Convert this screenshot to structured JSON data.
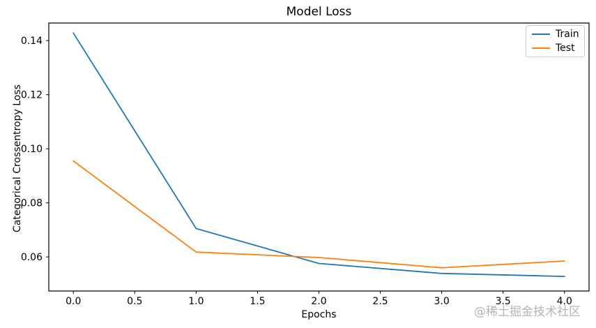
{
  "figure": {
    "title": "Model Loss",
    "xlabel": "Epochs",
    "ylabel": "Categorical Crossentropy Loss"
  },
  "legend": {
    "items": [
      {
        "label": "Train",
        "color": "#1f77b4"
      },
      {
        "label": "Test",
        "color": "#ff7f0e"
      }
    ]
  },
  "watermark": "@稀土掘金技术社区",
  "colors": {
    "train_line": "#1f77b4",
    "test_line": "#ff7f0e",
    "axis": "#000000",
    "legend_border": "#cccccc",
    "watermark_text": "#9a9a9a"
  },
  "chart_data": {
    "type": "line",
    "title": "Model Loss",
    "xlabel": "Epochs",
    "ylabel": "Categorical Crossentropy Loss",
    "x": [
      0,
      1,
      2,
      3,
      4
    ],
    "series": [
      {
        "name": "Train",
        "color": "#1f77b4",
        "values": [
          0.1428,
          0.0705,
          0.0576,
          0.0539,
          0.0528
        ]
      },
      {
        "name": "Test",
        "color": "#ff7f0e",
        "values": [
          0.0955,
          0.0618,
          0.0598,
          0.056,
          0.0585
        ]
      }
    ],
    "xlim": [
      -0.2,
      4.2
    ],
    "ylim": [
      0.0474,
      0.1465
    ],
    "x_ticks": [
      {
        "v": 0.0,
        "label": "0.0"
      },
      {
        "v": 0.5,
        "label": "0.5"
      },
      {
        "v": 1.0,
        "label": "1.0"
      },
      {
        "v": 1.5,
        "label": "1.5"
      },
      {
        "v": 2.0,
        "label": "2.0"
      },
      {
        "v": 2.5,
        "label": "2.5"
      },
      {
        "v": 3.0,
        "label": "3.0"
      },
      {
        "v": 3.5,
        "label": "3.5"
      },
      {
        "v": 4.0,
        "label": "4.0"
      }
    ],
    "y_ticks": [
      {
        "v": 0.06,
        "label": "0.06"
      },
      {
        "v": 0.08,
        "label": "0.08"
      },
      {
        "v": 0.1,
        "label": "0.10"
      },
      {
        "v": 0.12,
        "label": "0.12"
      },
      {
        "v": 0.14,
        "label": "0.14"
      }
    ],
    "grid": false,
    "legend_position": "upper right"
  }
}
